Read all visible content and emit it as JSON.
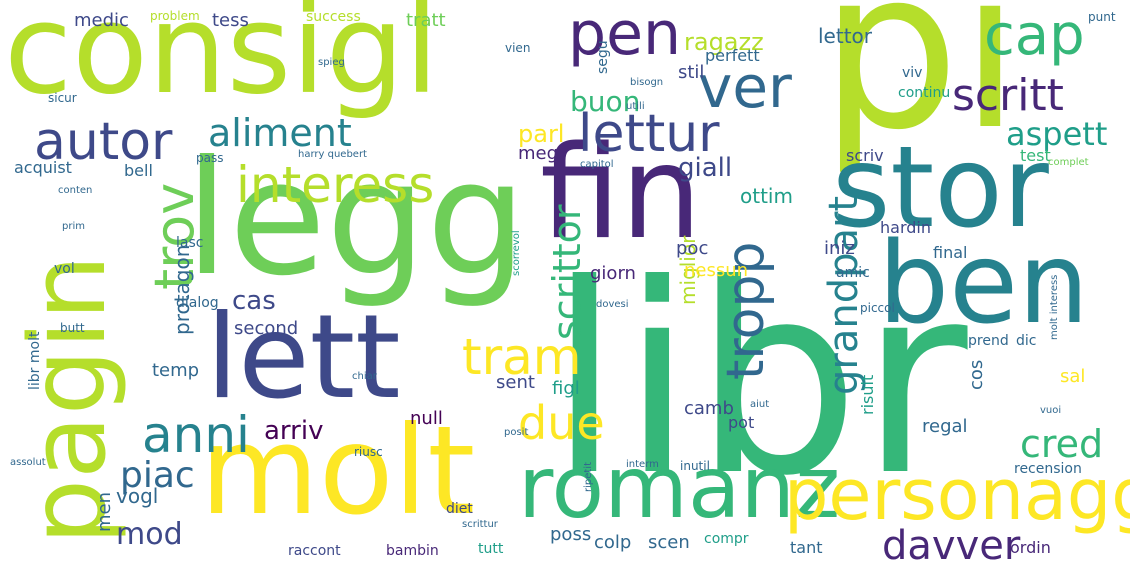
{
  "palette": {
    "yellow": "#fde725",
    "lime": "#b5de2b",
    "green": "#6ece58",
    "emerald": "#35b779",
    "teal": "#1f9e89",
    "blue": "#26828e",
    "steel": "#31688e",
    "indigo": "#3e4989",
    "purple": "#482878",
    "violet": "#440154"
  },
  "words": [
    {
      "text": "libr",
      "color": "emerald"
    },
    {
      "text": "pi",
      "color": "lime"
    },
    {
      "text": "consigl",
      "color": "lime"
    },
    {
      "text": "legg",
      "color": "green"
    },
    {
      "text": "fin",
      "color": "purple"
    },
    {
      "text": "stor",
      "color": "blue"
    },
    {
      "text": "ben",
      "color": "blue"
    },
    {
      "text": "lett",
      "color": "indigo"
    },
    {
      "text": "molt",
      "color": "yellow"
    },
    {
      "text": "pagin",
      "color": "lime"
    },
    {
      "text": "romanz",
      "color": "emerald"
    },
    {
      "text": "personagg",
      "color": "yellow"
    },
    {
      "text": "pen",
      "color": "purple"
    },
    {
      "text": "ver",
      "color": "steel"
    },
    {
      "text": "cap",
      "color": "emerald"
    },
    {
      "text": "lettur",
      "color": "indigo"
    },
    {
      "text": "scritt",
      "color": "purple"
    },
    {
      "text": "autor",
      "color": "indigo"
    },
    {
      "text": "interess",
      "color": "lime"
    },
    {
      "text": "aliment",
      "color": "blue"
    },
    {
      "text": "tram",
      "color": "yellow"
    },
    {
      "text": "anni",
      "color": "blue"
    },
    {
      "text": "tropp",
      "color": "steel"
    },
    {
      "text": "due",
      "color": "yellow"
    },
    {
      "text": "trov",
      "color": "green"
    },
    {
      "text": "grandpart",
      "color": "blue"
    },
    {
      "text": "person",
      "color": "yellow"
    },
    {
      "text": "scrittor",
      "color": "emerald"
    },
    {
      "text": "aspett",
      "color": "teal"
    },
    {
      "text": "cred",
      "color": "emerald"
    },
    {
      "text": "davver",
      "color": "purple"
    },
    {
      "text": "piac",
      "color": "steel"
    },
    {
      "text": "mod",
      "color": "indigo"
    },
    {
      "text": "arriv",
      "color": "violet"
    },
    {
      "text": "ragazz",
      "color": "lime"
    },
    {
      "text": "buon",
      "color": "emerald"
    },
    {
      "text": "parl",
      "color": "yellow"
    },
    {
      "text": "giall",
      "color": "indigo"
    },
    {
      "text": "cas",
      "color": "indigo"
    },
    {
      "text": "medic",
      "color": "indigo"
    },
    {
      "text": "tess",
      "color": "indigo"
    },
    {
      "text": "tratt",
      "color": "green"
    },
    {
      "text": "lettor",
      "color": "steel"
    },
    {
      "text": "stil",
      "color": "indigo"
    },
    {
      "text": "perfett",
      "color": "steel"
    },
    {
      "text": "megl",
      "color": "purple"
    },
    {
      "text": "miglior",
      "color": "lime"
    },
    {
      "text": "poc",
      "color": "indigo"
    },
    {
      "text": "giorn",
      "color": "purple"
    },
    {
      "text": "nessun",
      "color": "yellow"
    },
    {
      "text": "iniz",
      "color": "indigo"
    },
    {
      "text": "final",
      "color": "steel"
    },
    {
      "text": "hardin",
      "color": "indigo"
    },
    {
      "text": "ottim",
      "color": "teal"
    },
    {
      "text": "scriv",
      "color": "indigo"
    },
    {
      "text": "test",
      "color": "emerald"
    },
    {
      "text": "protagon",
      "color": "steel"
    },
    {
      "text": "second",
      "color": "indigo"
    },
    {
      "text": "temp",
      "color": "steel"
    },
    {
      "text": "sent",
      "color": "indigo"
    },
    {
      "text": "figl",
      "color": "teal"
    },
    {
      "text": "null",
      "color": "violet"
    },
    {
      "text": "camb",
      "color": "indigo"
    },
    {
      "text": "pot",
      "color": "indigo"
    },
    {
      "text": "risult",
      "color": "teal"
    },
    {
      "text": "regal",
      "color": "steel"
    },
    {
      "text": "cos",
      "color": "steel"
    },
    {
      "text": "sal",
      "color": "yellow"
    },
    {
      "text": "vogl",
      "color": "steel"
    },
    {
      "text": "men",
      "color": "steel"
    },
    {
      "text": "poss",
      "color": "steel"
    },
    {
      "text": "colp",
      "color": "steel"
    },
    {
      "text": "scen",
      "color": "steel"
    },
    {
      "text": "tant",
      "color": "steel"
    },
    {
      "text": "ordin",
      "color": "purple"
    },
    {
      "text": "raccont",
      "color": "indigo"
    },
    {
      "text": "bambin",
      "color": "purple"
    },
    {
      "text": "tutt",
      "color": "teal"
    },
    {
      "text": "compr",
      "color": "teal"
    },
    {
      "text": "diet",
      "color": "indigo"
    },
    {
      "text": "acquist",
      "color": "steel"
    },
    {
      "text": "bell",
      "color": "steel"
    },
    {
      "text": "vol",
      "color": "steel"
    },
    {
      "text": "lasc",
      "color": "steel"
    },
    {
      "text": "dialog",
      "color": "steel"
    },
    {
      "text": "amic",
      "color": "steel"
    },
    {
      "text": "prend",
      "color": "steel"
    },
    {
      "text": "dic",
      "color": "steel"
    },
    {
      "text": "recension",
      "color": "steel"
    },
    {
      "text": "libr molt",
      "color": "steel"
    },
    {
      "text": "viv",
      "color": "steel"
    },
    {
      "text": "continu",
      "color": "teal"
    },
    {
      "text": "segu",
      "color": "steel"
    },
    {
      "text": "success",
      "color": "lime"
    },
    {
      "text": "problem",
      "color": "lime"
    },
    {
      "text": "vien",
      "color": "steel"
    },
    {
      "text": "sicur",
      "color": "steel"
    },
    {
      "text": "punt",
      "color": "steel"
    },
    {
      "text": "pass",
      "color": "steel"
    },
    {
      "text": "piccol",
      "color": "steel"
    },
    {
      "text": "butt",
      "color": "steel"
    },
    {
      "text": "scorrevol",
      "color": "teal"
    },
    {
      "text": "harry quebert",
      "color": "steel"
    },
    {
      "text": "capitol",
      "color": "steel"
    },
    {
      "text": "molt interess",
      "color": "steel"
    },
    {
      "text": "riusc",
      "color": "steel"
    },
    {
      "text": "inutil",
      "color": "steel"
    },
    {
      "text": "scrittur",
      "color": "steel"
    },
    {
      "text": "interm",
      "color": "steel"
    },
    {
      "text": "ripetit",
      "color": "steel"
    },
    {
      "text": "complet",
      "color": "green"
    },
    {
      "text": "conten",
      "color": "steel"
    },
    {
      "text": "spieg",
      "color": "steel"
    },
    {
      "text": "utili",
      "color": "steel"
    },
    {
      "text": "dovesi",
      "color": "steel"
    },
    {
      "text": "aiut",
      "color": "steel"
    },
    {
      "text": "vuoi",
      "color": "steel"
    },
    {
      "text": "prim",
      "color": "steel"
    },
    {
      "text": "bisogn",
      "color": "steel"
    },
    {
      "text": "assolut",
      "color": "steel"
    },
    {
      "text": "chiar",
      "color": "steel"
    },
    {
      "text": "posit",
      "color": "steel"
    }
  ]
}
